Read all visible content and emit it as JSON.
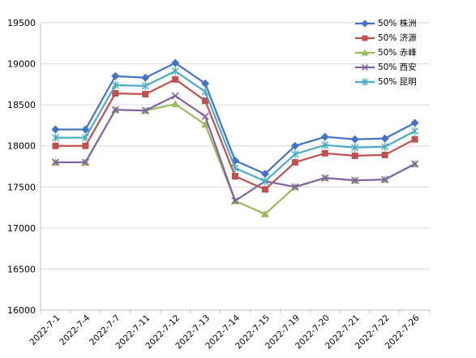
{
  "chart_data": {
    "type": "line",
    "categories": [
      "2022-7-1",
      "2022-7-4",
      "2022-7-7",
      "2022-7-11",
      "2022-7-12",
      "2022-7-13",
      "2022-7-14",
      "2022-7-15",
      "2022-7-19",
      "2022-7-20",
      "2022-7-21",
      "2022-7-22",
      "2022-7-26"
    ],
    "ylim": [
      16000,
      19500
    ],
    "yticks": [
      16000,
      16500,
      17000,
      17500,
      18000,
      18500,
      19000,
      19500
    ],
    "grid": "horizontal",
    "legend_position": "top-right",
    "series": [
      {
        "name": "50% 株洲",
        "color": "#4472C4",
        "marker": "diamond",
        "values": [
          18200,
          18200,
          18850,
          18830,
          19010,
          18760,
          17820,
          17660,
          18000,
          18110,
          18080,
          18090,
          18280
        ]
      },
      {
        "name": "50% 济源",
        "color": "#C0504D",
        "marker": "square",
        "values": [
          18000,
          18000,
          18640,
          18630,
          18810,
          18550,
          17630,
          17470,
          17800,
          17910,
          17880,
          17890,
          18080
        ]
      },
      {
        "name": "50% 赤峰",
        "color": "#9BBB59",
        "marker": "triangle",
        "values": [
          17800,
          17800,
          18440,
          18430,
          18510,
          18260,
          17330,
          17170,
          17500,
          17610,
          17580,
          17590,
          17780
        ]
      },
      {
        "name": "50% 西安",
        "color": "#8064A2",
        "marker": "x",
        "values": [
          17800,
          17800,
          18440,
          18430,
          18610,
          18360,
          17330,
          17570,
          17500,
          17610,
          17580,
          17590,
          17780
        ]
      },
      {
        "name": "50% 昆明",
        "color": "#4BACC6",
        "marker": "star",
        "values": [
          18100,
          18100,
          18740,
          18730,
          18910,
          18660,
          17730,
          17570,
          17900,
          18010,
          17980,
          17990,
          18180
        ]
      }
    ]
  }
}
